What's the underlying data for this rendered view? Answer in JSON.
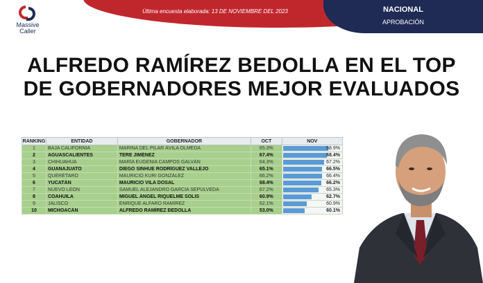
{
  "header": {
    "survey_date": "Última encuesta elaborada: 13 DE NOVIEMBRE DEL 2023",
    "scope": "NACIONAL",
    "metric": "APROBACIÓN"
  },
  "brand": {
    "line1": "Massive",
    "line2": "Caller",
    "icon": "massive-caller-logo"
  },
  "headline": {
    "line1": "ALFREDO RAMÍREZ BEDOLLA EN EL TOP",
    "line2": "DE GOBERNADORES MEJOR EVALUADOS"
  },
  "colors": {
    "red": "#c0272d",
    "navy": "#1f2a55",
    "row_green": "#a6d08b",
    "bar_blue": "#5b9bd5"
  },
  "table": {
    "headers": {
      "rank": "RANKING",
      "entity": "ENTIDAD",
      "governor": "GOBERNADOR",
      "oct": "OCT",
      "nov": "NOV"
    },
    "rows": [
      {
        "rank": "1",
        "entity": "BAJA CALIFORNIA",
        "governor": "MARINA DEL PILAR ÁVILA OLMEDA",
        "oct": "65.3%",
        "nov": "68.9%",
        "nov_value": 68.9,
        "bold": false
      },
      {
        "rank": "2",
        "entity": "AGUASCALIENTES",
        "governor": "TERE JIMÉNEZ",
        "oct": "67.4%",
        "nov": "68.4%",
        "nov_value": 68.4,
        "bold": true
      },
      {
        "rank": "3",
        "entity": "CHIHUAHUA",
        "governor": "MARÍA EUGENIA CAMPOS GALVÁN",
        "oct": "64.3%",
        "nov": "67.2%",
        "nov_value": 67.2,
        "bold": false
      },
      {
        "rank": "4",
        "entity": "GUANAJUATO",
        "governor": "DIEGO SINHUE RODRÍGUEZ VALLEJO",
        "oct": "65.1%",
        "nov": "66.5%",
        "nov_value": 66.5,
        "bold": true
      },
      {
        "rank": "5",
        "entity": "QUERÉTARO",
        "governor": "MAURICIO KURI GONZÁLEZ",
        "oct": "66.2%",
        "nov": "66.4%",
        "nov_value": 66.4,
        "bold": false
      },
      {
        "rank": "6",
        "entity": "YUCATÁN",
        "governor": "MAURICIO VILA DOSAL",
        "oct": "68.4%",
        "nov": "66.2%",
        "nov_value": 66.2,
        "bold": true
      },
      {
        "rank": "7",
        "entity": "NUEVO LEÓN",
        "governor": "SAMUEL ALEJANDRO GARCÍA SEPÚLVEDA",
        "oct": "67.2%",
        "nov": "65.3%",
        "nov_value": 65.3,
        "bold": false
      },
      {
        "rank": "8",
        "entity": "COAHUILA",
        "governor": "MIGUEL ÁNGEL RIQUELME SOLIS",
        "oct": "60.9%",
        "nov": "62.7%",
        "nov_value": 62.7,
        "bold": true
      },
      {
        "rank": "9",
        "entity": "JALISCO",
        "governor": "ENRIQUE ALFARO RAMÍREZ",
        "oct": "62.1%",
        "nov": "60.9%",
        "nov_value": 60.9,
        "bold": false
      },
      {
        "rank": "10",
        "entity": "MICHOACÁN",
        "governor": "ALFREDO RAMÍREZ BEDOLLA",
        "oct": "53.0%",
        "nov": "60.1%",
        "nov_value": 60.1,
        "bold": true
      }
    ]
  },
  "photo": {
    "icon": "governor-portrait"
  }
}
